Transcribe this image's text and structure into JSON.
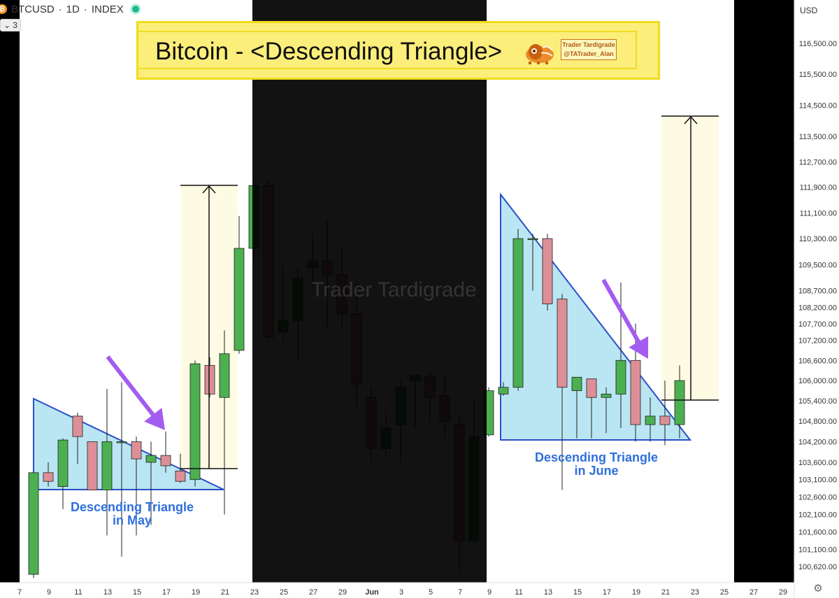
{
  "header": {
    "symbol": "BTCUSD",
    "sep1": "·",
    "interval": "1D",
    "sep2": "·",
    "exchange": "INDEX",
    "btc_glyph": "₿",
    "collapse_count": "3",
    "status_color": "#1db88e"
  },
  "price_scale": {
    "currency": "USD"
  },
  "banner": {
    "title": "Bitcoin - <Descending Triangle>",
    "brand_name": "Trader Tardigrade",
    "brand_handle": "@TATrader_Alan"
  },
  "watermark": "Trader Tardigrade",
  "annotations": {
    "may_line1": "Descending Triangle",
    "may_line2": "in May",
    "june_line1": "Descending Triangle",
    "june_line2": "in June"
  },
  "colors": {
    "up": "#4caf50",
    "down": "#dd8f98",
    "triangle_fill": "#b9e6f2",
    "triangle_stroke": "#2c4fc9",
    "target_fill": "#fdfbe3",
    "arrow": "#a35cf0",
    "shade": "#000000"
  },
  "chart_data": {
    "type": "candlestick",
    "title": "Bitcoin - <Descending Triangle>",
    "ylabel": "USD",
    "ylim": [
      100300,
      117200
    ],
    "y_scale": "log",
    "x_ticks": [
      "7",
      "9",
      "11",
      "13",
      "15",
      "17",
      "19",
      "21",
      "23",
      "25",
      "27",
      "29",
      "Jun",
      "3",
      "5",
      "7",
      "9",
      "11",
      "13",
      "15",
      "17",
      "19",
      "21",
      "23",
      "25",
      "27",
      "29"
    ],
    "y_ticks": [
      116500,
      115500,
      114500,
      113500,
      112700,
      111900,
      111100,
      110300,
      109500,
      108700,
      108200,
      107700,
      107200,
      106600,
      106000,
      105400,
      104800,
      104200,
      103600,
      103100,
      102600,
      102100,
      101600,
      101100,
      100620
    ],
    "candles": [
      {
        "date": "8",
        "o": 100400,
        "h": 103300,
        "l": 100300,
        "c": 103300
      },
      {
        "date": "9",
        "o": 103300,
        "h": 103600,
        "l": 102900,
        "c": 103050
      },
      {
        "date": "10",
        "o": 102900,
        "h": 104300,
        "l": 102250,
        "c": 104250
      },
      {
        "date": "11",
        "o": 104950,
        "h": 105050,
        "l": 103550,
        "c": 104350
      },
      {
        "date": "12",
        "o": 104200,
        "h": 104200,
        "l": 102800,
        "c": 102800
      },
      {
        "date": "13",
        "o": 102800,
        "h": 105750,
        "l": 101500,
        "c": 104200
      },
      {
        "date": "14",
        "o": 104200,
        "h": 105950,
        "l": 100900,
        "c": 104200
      },
      {
        "date": "15",
        "o": 104200,
        "h": 104350,
        "l": 101500,
        "c": 103700
      },
      {
        "date": "16",
        "o": 103600,
        "h": 104200,
        "l": 101800,
        "c": 103800
      },
      {
        "date": "17",
        "o": 103800,
        "h": 104500,
        "l": 103300,
        "c": 103500
      },
      {
        "date": "18",
        "o": 103350,
        "h": 103850,
        "l": 103000,
        "c": 103050
      },
      {
        "date": "19",
        "o": 103100,
        "h": 106600,
        "l": 102900,
        "c": 106500
      },
      {
        "date": "20",
        "o": 106450,
        "h": 106700,
        "l": 105500,
        "c": 105600
      },
      {
        "date": "21",
        "o": 105500,
        "h": 107500,
        "l": 102100,
        "c": 106800
      },
      {
        "date": "22",
        "o": 106900,
        "h": 111000,
        "l": 106800,
        "c": 110000
      },
      {
        "date": "23",
        "o": 110000,
        "h": 112100,
        "l": 109500,
        "c": 111950
      },
      {
        "date": "24",
        "o": 111950,
        "h": 112100,
        "l": 107200,
        "c": 107300
      },
      {
        "date": "25",
        "o": 107450,
        "h": 109500,
        "l": 107150,
        "c": 107800
      },
      {
        "date": "26",
        "o": 107800,
        "h": 109400,
        "l": 106600,
        "c": 109100
      },
      {
        "date": "27",
        "o": 109400,
        "h": 110450,
        "l": 108800,
        "c": 109600
      },
      {
        "date": "28",
        "o": 109600,
        "h": 110900,
        "l": 107600,
        "c": 109200
      },
      {
        "date": "29",
        "o": 109200,
        "h": 110000,
        "l": 107600,
        "c": 108000
      },
      {
        "date": "30",
        "o": 108000,
        "h": 109000,
        "l": 105200,
        "c": 105900
      },
      {
        "date": "31",
        "o": 105500,
        "h": 105800,
        "l": 103600,
        "c": 104000
      },
      {
        "date": "Jun",
        "o": 104000,
        "h": 105100,
        "l": 103700,
        "c": 104600
      },
      {
        "date": "2",
        "o": 104700,
        "h": 106000,
        "l": 103600,
        "c": 105800
      },
      {
        "date": "3",
        "o": 106000,
        "h": 106150,
        "l": 104600,
        "c": 106150
      },
      {
        "date": "4",
        "o": 106100,
        "h": 106250,
        "l": 104800,
        "c": 105500
      },
      {
        "date": "5",
        "o": 105550,
        "h": 106150,
        "l": 104300,
        "c": 104800
      },
      {
        "date": "6",
        "o": 104700,
        "h": 105000,
        "l": 100500,
        "c": 101350
      },
      {
        "date": "7",
        "o": 101350,
        "h": 105500,
        "l": 101300,
        "c": 104350
      },
      {
        "date": "8",
        "o": 104400,
        "h": 105800,
        "l": 104350,
        "c": 105700
      },
      {
        "date": "9",
        "o": 105600,
        "h": 105950,
        "l": 105550,
        "c": 105800
      },
      {
        "date": "10",
        "o": 105800,
        "h": 110600,
        "l": 105700,
        "c": 110300
      },
      {
        "date": "11",
        "o": 110300,
        "h": 110450,
        "l": 108700,
        "c": 110300
      },
      {
        "date": "12",
        "o": 110300,
        "h": 110450,
        "l": 108100,
        "c": 108300
      },
      {
        "date": "13",
        "o": 108450,
        "h": 108600,
        "l": 102800,
        "c": 105800
      },
      {
        "date": "14",
        "o": 105700,
        "h": 106100,
        "l": 104300,
        "c": 106100
      },
      {
        "date": "15",
        "o": 106050,
        "h": 106050,
        "l": 104300,
        "c": 105500
      },
      {
        "date": "16",
        "o": 105500,
        "h": 105800,
        "l": 104450,
        "c": 105600
      },
      {
        "date": "17",
        "o": 105600,
        "h": 108950,
        "l": 104600,
        "c": 106600
      },
      {
        "date": "18",
        "o": 106600,
        "h": 107700,
        "l": 104200,
        "c": 104700
      },
      {
        "date": "19",
        "o": 104700,
        "h": 105500,
        "l": 104200,
        "c": 104950
      },
      {
        "date": "20",
        "o": 104950,
        "h": 106000,
        "l": 104100,
        "c": 104700
      },
      {
        "date": "21",
        "o": 104700,
        "h": 106450,
        "l": 104300,
        "c": 106000
      }
    ],
    "annotations": [
      "Descending Triangle in May",
      "Descending Triangle in June"
    ]
  }
}
